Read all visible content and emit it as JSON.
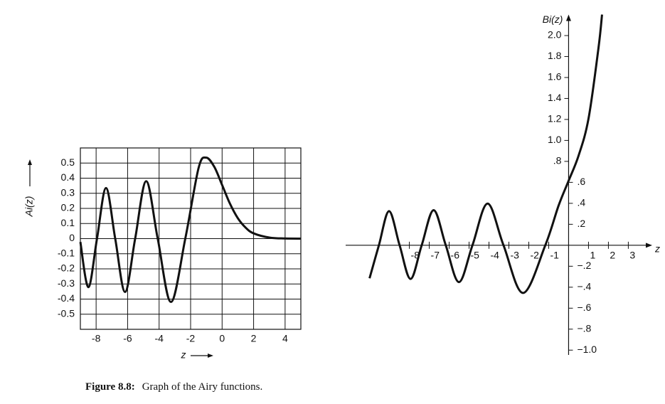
{
  "chart_data": [
    {
      "type": "line",
      "grid": true,
      "ylabel": "Ai(z)",
      "xlabel": "z",
      "xlim": [
        -9,
        5
      ],
      "ylim": [
        -0.6,
        0.6
      ],
      "xticks": [
        -8,
        -6,
        -4,
        -2,
        0,
        2,
        4
      ],
      "yticks": [
        -0.5,
        -0.4,
        -0.3,
        -0.2,
        -0.1,
        0,
        0.1,
        0.2,
        0.3,
        0.4,
        0.5
      ],
      "color": "#111111",
      "x": [
        -9,
        -8.488,
        -7.944,
        -7.372,
        -6.787,
        -6.163,
        -5.521,
        -4.82,
        -4.088,
        -3.248,
        -2.338,
        -1.5,
        -1.019,
        -0.5,
        0,
        0.5,
        1,
        1.5,
        2,
        3,
        4,
        5
      ],
      "values": [
        -0.022,
        -0.321,
        0,
        0.335,
        0,
        -0.353,
        0,
        0.38,
        0,
        -0.419,
        0,
        0.465,
        0.536,
        0.476,
        0.355,
        0.231,
        0.135,
        0.072,
        0.035,
        0.007,
        0.001,
        0.0001
      ]
    },
    {
      "type": "line",
      "grid": false,
      "axes_through_origin": true,
      "ylabel": "Bi(z)",
      "xlabel": "z",
      "xlim": [
        -11.2,
        4.2
      ],
      "ylim": [
        -1.1,
        2.2
      ],
      "xticks": [
        -8,
        -7,
        -6,
        -5,
        -4,
        -3,
        -2,
        -1,
        1,
        2,
        3
      ],
      "yticks": [
        {
          "value": -1.0,
          "label": "−1.0"
        },
        {
          "value": -0.8,
          "label": "−.8"
        },
        {
          "value": -0.6,
          "label": "−.6"
        },
        {
          "value": -0.4,
          "label": "−.4"
        },
        {
          "value": -0.2,
          "label": "−.2"
        },
        {
          "value": 0.2,
          "label": ".2"
        },
        {
          "value": 0.4,
          "label": ".4"
        },
        {
          "value": 0.6,
          "label": ".6"
        },
        {
          "value": 0.8,
          "label": ".8"
        },
        {
          "value": 1.0,
          "label": "1.0"
        },
        {
          "value": 1.2,
          "label": "1.2"
        },
        {
          "value": 1.4,
          "label": "1.4"
        },
        {
          "value": 1.6,
          "label": "1.6"
        },
        {
          "value": 1.8,
          "label": "1.8"
        },
        {
          "value": 2.0,
          "label": "2.0"
        }
      ],
      "color": "#111111",
      "x": [
        -10,
        -9.53,
        -9.02,
        -8.49,
        -7.94,
        -7.38,
        -6.78,
        -6.17,
        -5.51,
        -4.83,
        -4.07,
        -3.27,
        -2.29,
        -1.17,
        -0.5,
        0,
        0.5,
        1,
        1.5,
        1.68
      ],
      "values": [
        -0.315,
        0,
        0.325,
        0,
        -0.321,
        0,
        0.335,
        0,
        -0.351,
        0,
        0.397,
        0,
        -0.455,
        0,
        0.38,
        0.615,
        0.854,
        1.207,
        1.879,
        2.2
      ]
    }
  ],
  "caption": {
    "label": "Figure 8.8:",
    "text": "Graph of the Airy functions."
  }
}
